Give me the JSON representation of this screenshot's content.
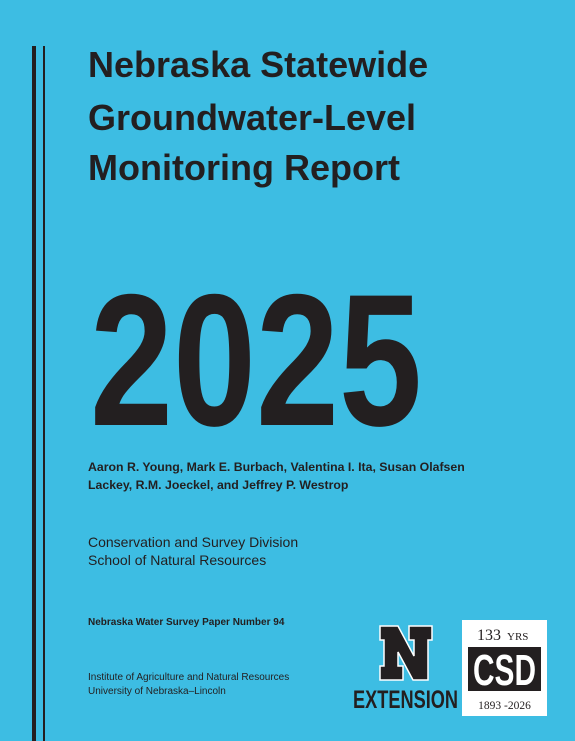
{
  "cover": {
    "title_lines": [
      "Nebraska Statewide",
      "Groundwater-Level",
      "Monitoring Report"
    ],
    "year": "2025",
    "authors_lines": [
      "Aaron R. Young, Mark E. Burbach, Valentina I. Ita, Susan Olafsen",
      "Lackey, R.M. Joeckel, and Jeffrey P. Westrop"
    ],
    "division_lines": [
      "Conservation and Survey Division",
      "School of Natural Resources"
    ],
    "series": "Nebraska Water Survey Paper Number 94",
    "institute_lines": [
      "Institute of Agriculture and Natural Resources",
      "University of Nebraska–Lincoln"
    ],
    "extension_logo": {
      "label": "EXTENSION"
    },
    "csd_logo": {
      "years": "133",
      "years_unit": "YRS",
      "name": "CSD",
      "span": "1893 -2026"
    }
  }
}
